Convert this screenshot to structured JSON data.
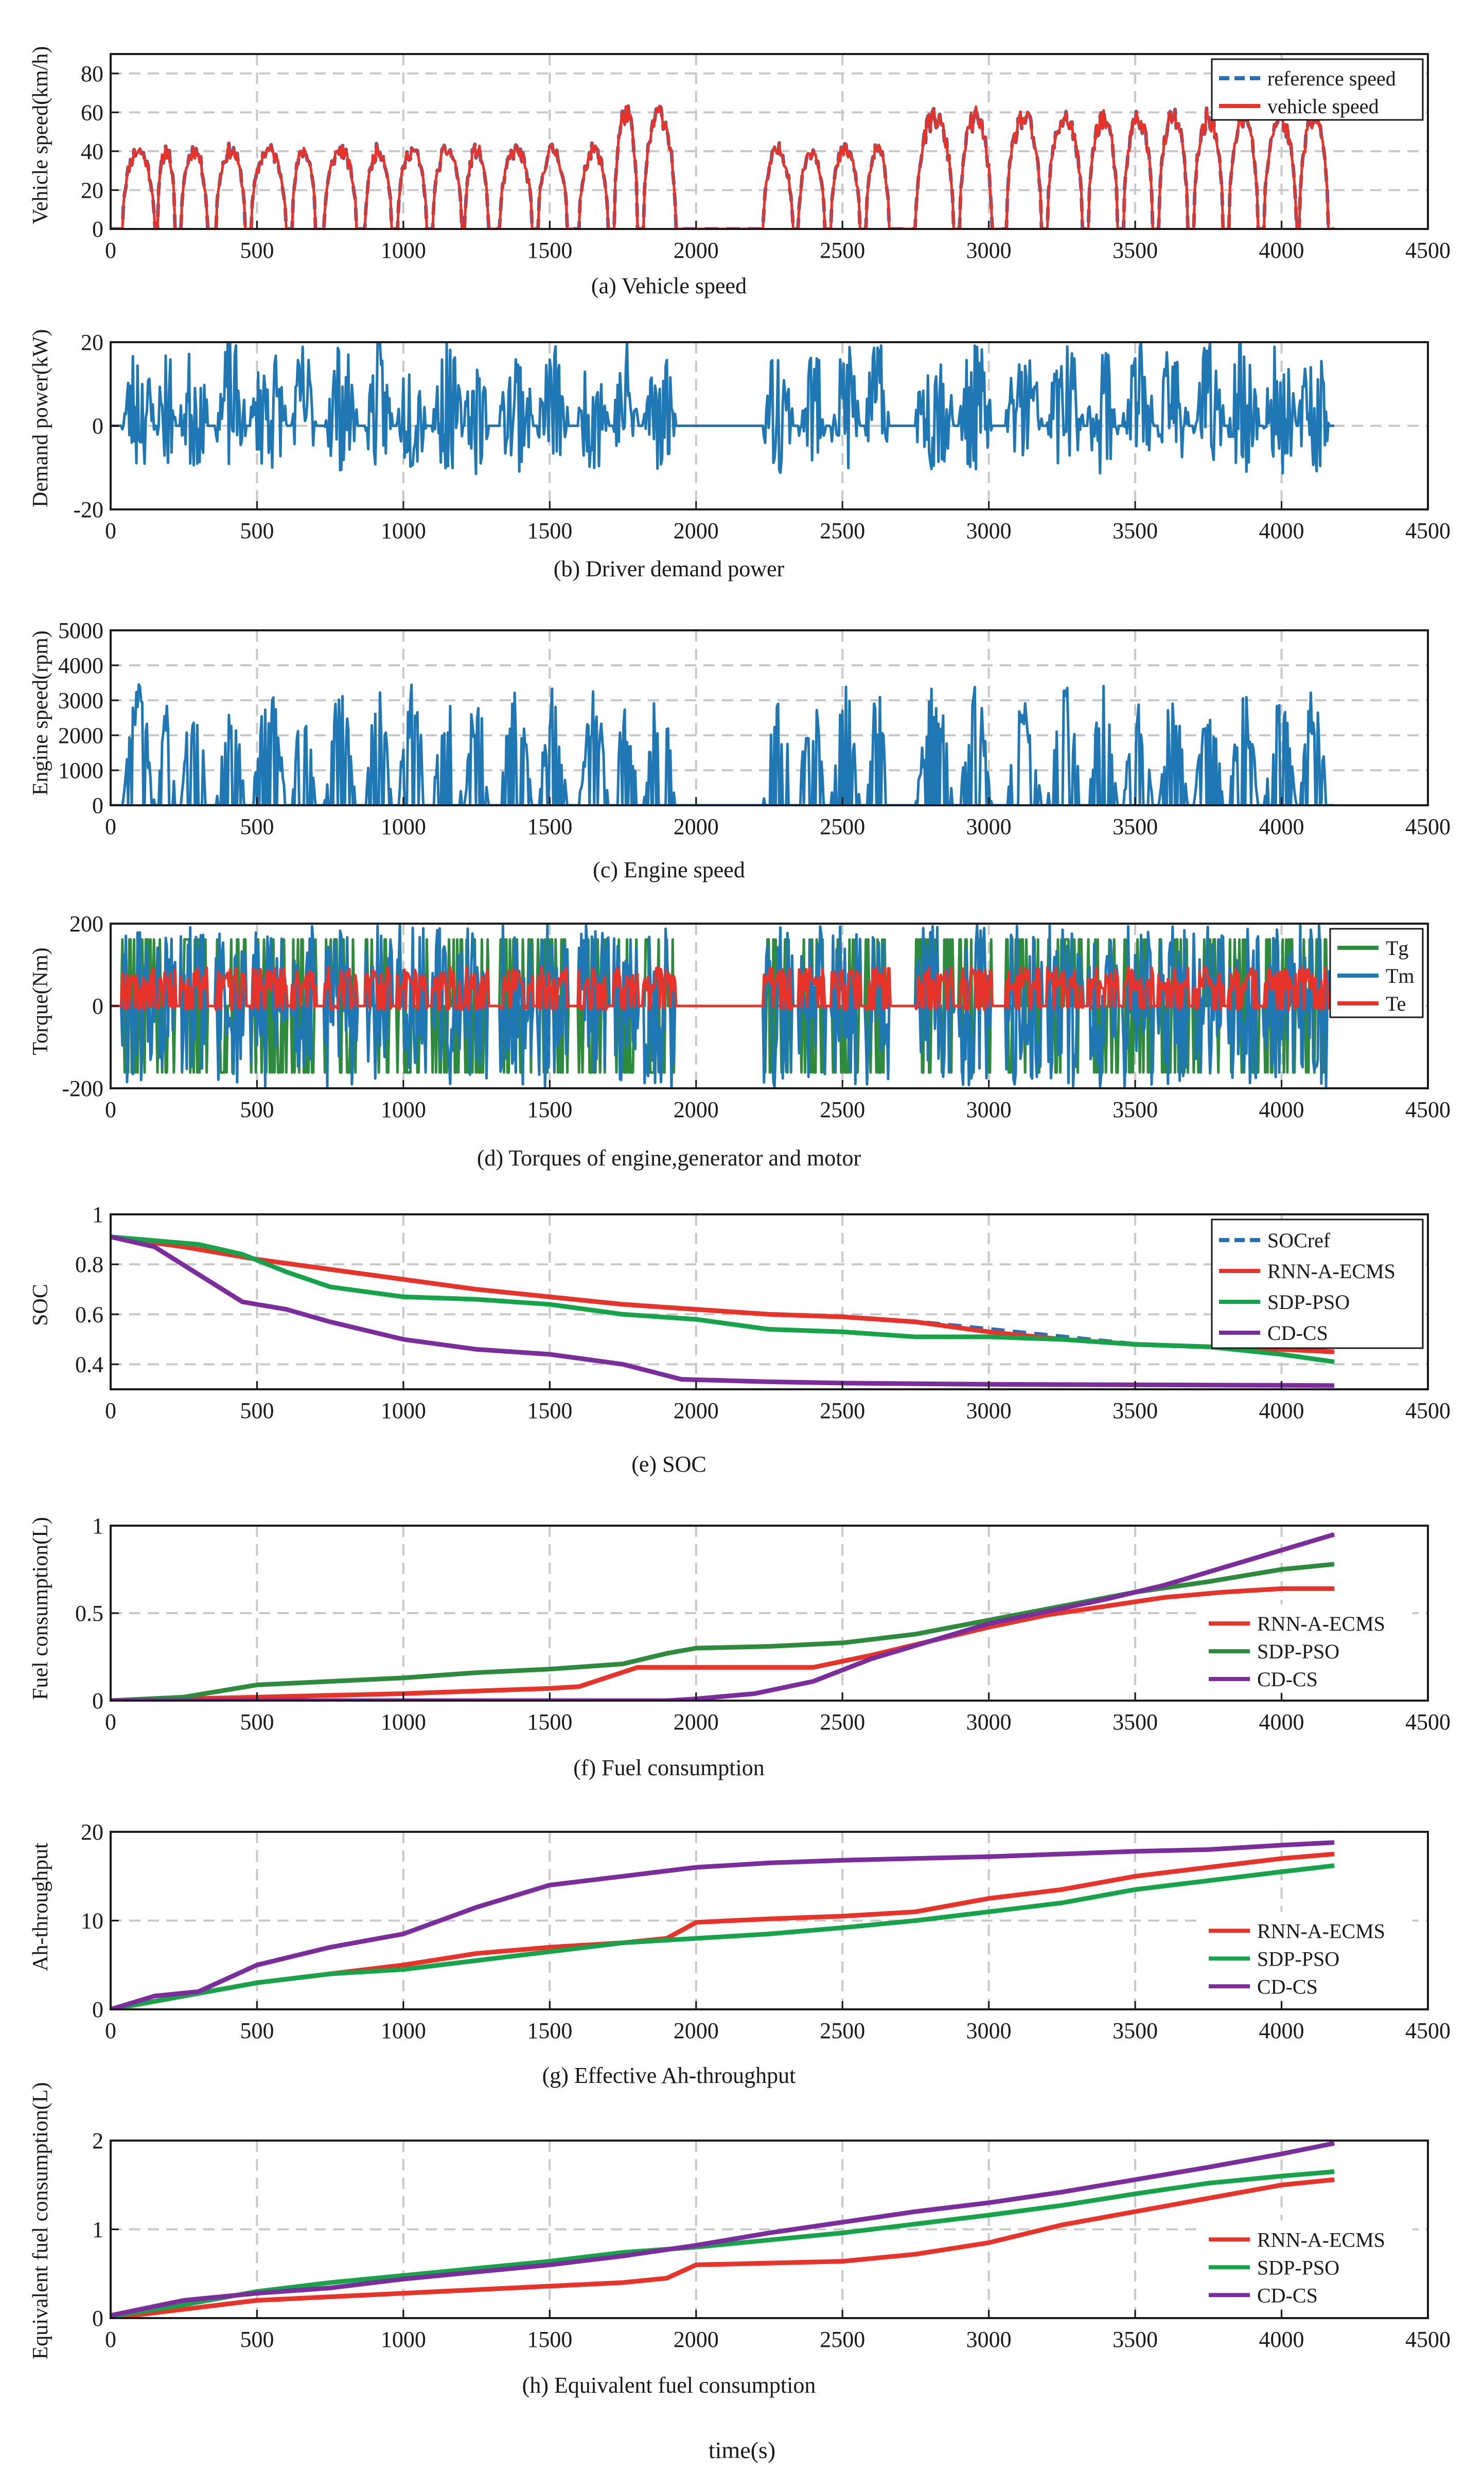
{
  "figure": {
    "xlabel": "time(s)"
  },
  "colors": {
    "red": "#e8332a",
    "blue": "#1f77b4",
    "green": "#16a34a",
    "darkgreen": "#2e8b3d",
    "purple": "#7b2d9b",
    "refblue": "#2a6fb5",
    "grid": "#c8c8c8"
  },
  "chart_data": [
    {
      "id": "a",
      "type": "line",
      "caption": "(a)  Vehicle speed",
      "ylabel": "Vehicle  speed(km/h)",
      "xlim": [
        0,
        4500
      ],
      "ylim": [
        0,
        90
      ],
      "xticks": [
        "0",
        "500",
        "1000",
        "1500",
        "2000",
        "2500",
        "3000",
        "3500",
        "4000",
        "4500"
      ],
      "yticks": [
        "0",
        "20",
        "40",
        "60",
        "80"
      ],
      "legend": {
        "position": "top-right",
        "entries": [
          "reference speed",
          "vehicle speed"
        ]
      },
      "series": [
        {
          "name": "reference speed",
          "color": "#2a6fb5",
          "style": "dashed",
          "signal": "speed",
          "seed": 11,
          "peak": 50,
          "cap": 64
        },
        {
          "name": "vehicle speed",
          "color": "#e8332a",
          "style": "solid",
          "signal": "speed",
          "seed": 11,
          "peak": 50,
          "cap": 64
        }
      ]
    },
    {
      "id": "b",
      "type": "line",
      "caption": "(b)  Driver demand power",
      "ylabel": "Demand power(kW)",
      "xlim": [
        0,
        4500
      ],
      "ylim": [
        -20,
        20
      ],
      "xticks": [
        "0",
        "500",
        "1000",
        "1500",
        "2000",
        "2500",
        "3000",
        "3500",
        "4000",
        "4500"
      ],
      "yticks": [
        "-20",
        "0",
        "20"
      ],
      "legend": null,
      "series": [
        {
          "name": "demand power",
          "color": "#1f77b4",
          "style": "solid",
          "signal": "power",
          "seed": 23,
          "peak": 20,
          "cap": 20
        }
      ]
    },
    {
      "id": "c",
      "type": "line",
      "caption": "(c)  Engine speed",
      "ylabel": "Engine speed(rpm)",
      "xlim": [
        0,
        4500
      ],
      "ylim": [
        0,
        5000
      ],
      "xticks": [
        "0",
        "500",
        "1000",
        "1500",
        "2000",
        "2500",
        "3000",
        "3500",
        "4000",
        "4500"
      ],
      "yticks": [
        "0",
        "1000",
        "2000",
        "3000",
        "4000",
        "5000"
      ],
      "legend": null,
      "series": [
        {
          "name": "engine speed",
          "color": "#1f77b4",
          "style": "solid",
          "signal": "engine",
          "seed": 37,
          "peak": 3000,
          "cap": 4300
        }
      ]
    },
    {
      "id": "d",
      "type": "line",
      "caption": "(d)  Torques of engine,generator and  motor",
      "ylabel": "Torque(Nm)",
      "xlim": [
        0,
        4500
      ],
      "ylim": [
        -200,
        200
      ],
      "xticks": [
        "0",
        "500",
        "1000",
        "1500",
        "2000",
        "2500",
        "3000",
        "3500",
        "4000",
        "4500"
      ],
      "yticks": [
        "-200",
        "0",
        "200"
      ],
      "legend": {
        "position": "top-right",
        "entries": [
          "Tg",
          "Tm",
          "Te"
        ]
      },
      "series": [
        {
          "name": "Tg",
          "color": "#2e8b3d",
          "style": "solid",
          "signal": "tg",
          "seed": 53,
          "peak": 160,
          "cap": 170
        },
        {
          "name": "Tm",
          "color": "#1f77b4",
          "style": "solid",
          "signal": "tm",
          "seed": 61,
          "peak": 200,
          "cap": 200
        },
        {
          "name": "Te",
          "color": "#e8332a",
          "style": "solid",
          "signal": "te",
          "seed": 71,
          "peak": 85,
          "cap": 95
        }
      ]
    },
    {
      "id": "e",
      "type": "line",
      "caption": "(e)  SOC",
      "ylabel": "SOC",
      "xlim": [
        0,
        4500
      ],
      "ylim": [
        0.3,
        1.0
      ],
      "xticks": [
        "0",
        "500",
        "1000",
        "1500",
        "2000",
        "2500",
        "3000",
        "3500",
        "4000",
        "4500"
      ],
      "yticks": [
        "0.4",
        "0.6",
        "0.8",
        "1"
      ],
      "legend": {
        "position": "top-right",
        "entries": [
          "SOCref",
          "RNN-A-ECMS",
          "SDP-PSO",
          "CD-CS"
        ]
      },
      "series": [
        {
          "name": "SOCref",
          "color": "#2a6fb5",
          "style": "dashed",
          "x": [
            0,
            250,
            500,
            750,
            1000,
            1250,
            1500,
            1750,
            2000,
            2250,
            2500,
            2750,
            3000,
            3250,
            3500,
            3750,
            4000,
            4180
          ],
          "y": [
            0.91,
            0.87,
            0.82,
            0.78,
            0.74,
            0.7,
            0.67,
            0.64,
            0.62,
            0.6,
            0.59,
            0.57,
            0.54,
            0.51,
            0.48,
            0.47,
            0.46,
            0.45
          ]
        },
        {
          "name": "RNN-A-ECMS",
          "color": "#e8332a",
          "style": "solid",
          "x": [
            0,
            250,
            500,
            750,
            1000,
            1250,
            1500,
            1750,
            2000,
            2250,
            2500,
            2750,
            3000,
            3250,
            3500,
            3750,
            4000,
            4180
          ],
          "y": [
            0.91,
            0.87,
            0.82,
            0.78,
            0.74,
            0.7,
            0.67,
            0.64,
            0.62,
            0.6,
            0.59,
            0.57,
            0.53,
            0.5,
            0.48,
            0.47,
            0.46,
            0.45
          ]
        },
        {
          "name": "SDP-PSO",
          "color": "#16a34a",
          "style": "solid",
          "x": [
            0,
            300,
            450,
            600,
            750,
            1000,
            1250,
            1500,
            1750,
            2000,
            2250,
            2500,
            2750,
            3000,
            3250,
            3500,
            3750,
            4000,
            4180
          ],
          "y": [
            0.91,
            0.88,
            0.84,
            0.77,
            0.71,
            0.67,
            0.66,
            0.64,
            0.6,
            0.58,
            0.54,
            0.53,
            0.51,
            0.51,
            0.5,
            0.48,
            0.47,
            0.44,
            0.41
          ]
        },
        {
          "name": "CD-CS",
          "color": "#7b2d9b",
          "style": "solid",
          "x": [
            0,
            150,
            300,
            450,
            600,
            750,
            1000,
            1250,
            1500,
            1750,
            1950,
            2250,
            2500,
            3000,
            3500,
            4000,
            4180
          ],
          "y": [
            0.91,
            0.87,
            0.76,
            0.65,
            0.62,
            0.57,
            0.5,
            0.46,
            0.44,
            0.4,
            0.34,
            0.33,
            0.325,
            0.32,
            0.318,
            0.316,
            0.315
          ]
        }
      ]
    },
    {
      "id": "f",
      "type": "line",
      "caption": "(f)  Fuel consumption",
      "ylabel": "Fuel consumption(L)",
      "xlim": [
        0,
        4500
      ],
      "ylim": [
        0,
        1
      ],
      "xticks": [
        "0",
        "500",
        "1000",
        "1500",
        "2000",
        "2500",
        "3000",
        "3500",
        "4000",
        "4500"
      ],
      "yticks": [
        "0",
        "0.5",
        "1"
      ],
      "legend": {
        "position": "right",
        "entries": [
          "RNN-A-ECMS",
          "SDP-PSO",
          "CD-CS"
        ]
      },
      "series": [
        {
          "name": "RNN-A-ECMS",
          "color": "#e8332a",
          "style": "solid",
          "x": [
            0,
            500,
            1000,
            1500,
            1600,
            1800,
            2000,
            2400,
            2600,
            2800,
            3000,
            3200,
            3400,
            3600,
            3800,
            4000,
            4180
          ],
          "y": [
            0,
            0.02,
            0.04,
            0.07,
            0.08,
            0.19,
            0.19,
            0.19,
            0.26,
            0.34,
            0.42,
            0.49,
            0.54,
            0.59,
            0.62,
            0.64,
            0.64
          ]
        },
        {
          "name": "SDP-PSO",
          "color": "#2e8b3d",
          "style": "solid",
          "x": [
            0,
            250,
            500,
            750,
            1000,
            1250,
            1500,
            1750,
            1900,
            2000,
            2250,
            2500,
            2750,
            3000,
            3250,
            3500,
            3750,
            4000,
            4180
          ],
          "y": [
            0,
            0.02,
            0.09,
            0.11,
            0.13,
            0.16,
            0.18,
            0.21,
            0.27,
            0.3,
            0.31,
            0.33,
            0.38,
            0.46,
            0.54,
            0.62,
            0.68,
            0.75,
            0.78
          ]
        },
        {
          "name": "CD-CS",
          "color": "#7b2d9b",
          "style": "solid",
          "x": [
            0,
            1000,
            1900,
            2000,
            2200,
            2400,
            2600,
            2800,
            3000,
            3200,
            3400,
            3600,
            3800,
            4000,
            4180
          ],
          "y": [
            0,
            0,
            0,
            0.01,
            0.04,
            0.11,
            0.24,
            0.34,
            0.44,
            0.51,
            0.58,
            0.66,
            0.76,
            0.86,
            0.95
          ]
        }
      ]
    },
    {
      "id": "g",
      "type": "line",
      "caption": "(g)  Effective Ah-throughput",
      "ylabel": "Ah-throughput",
      "xlim": [
        0,
        4500
      ],
      "ylim": [
        0,
        20
      ],
      "xticks": [
        "0",
        "500",
        "1000",
        "1500",
        "2000",
        "2500",
        "3000",
        "3500",
        "4000",
        "4500"
      ],
      "yticks": [
        "0",
        "10",
        "20"
      ],
      "legend": {
        "position": "right",
        "entries": [
          "RNN-A-ECMS",
          "SDP-PSO",
          "CD-CS"
        ]
      },
      "series": [
        {
          "name": "RNN-A-ECMS",
          "color": "#e8332a",
          "style": "solid",
          "x": [
            0,
            250,
            500,
            750,
            1000,
            1250,
            1500,
            1750,
            1900,
            2000,
            2250,
            2500,
            2750,
            3000,
            3250,
            3500,
            3750,
            4000,
            4180
          ],
          "y": [
            0,
            1.5,
            3,
            4,
            5,
            6.3,
            7,
            7.5,
            8,
            9.8,
            10.2,
            10.5,
            11,
            12.5,
            13.5,
            15,
            16,
            17,
            17.5
          ]
        },
        {
          "name": "SDP-PSO",
          "color": "#16a34a",
          "style": "solid",
          "x": [
            0,
            250,
            500,
            750,
            1000,
            1250,
            1500,
            1750,
            2000,
            2250,
            2500,
            2750,
            3000,
            3250,
            3500,
            3750,
            4000,
            4180
          ],
          "y": [
            0,
            1.5,
            3,
            4,
            4.5,
            5.5,
            6.5,
            7.5,
            8,
            8.5,
            9.2,
            10,
            11,
            12,
            13.5,
            14.5,
            15.5,
            16.2
          ]
        },
        {
          "name": "CD-CS",
          "color": "#7b2d9b",
          "style": "solid",
          "x": [
            0,
            150,
            300,
            500,
            750,
            1000,
            1250,
            1500,
            1750,
            2000,
            2250,
            2500,
            2750,
            3000,
            3250,
            3500,
            3750,
            4000,
            4180
          ],
          "y": [
            0,
            1.5,
            2,
            5,
            7,
            8.5,
            11.5,
            14,
            15,
            16,
            16.5,
            16.8,
            17,
            17.2,
            17.5,
            17.8,
            18,
            18.5,
            18.8
          ]
        }
      ]
    },
    {
      "id": "h",
      "type": "line",
      "caption": "(h)  Equivalent fuel consumption",
      "ylabel": "Equivalent fuel consumption(L)",
      "xlim": [
        0,
        4500
      ],
      "ylim": [
        0,
        2
      ],
      "xticks": [
        "0",
        "500",
        "1000",
        "1500",
        "2000",
        "2500",
        "3000",
        "3500",
        "4000",
        "4500"
      ],
      "yticks": [
        "0",
        "1",
        "2"
      ],
      "legend": {
        "position": "right",
        "entries": [
          "RNN-A-ECMS",
          "SDP-PSO",
          "CD-CS"
        ]
      },
      "series": [
        {
          "name": "RNN-A-ECMS",
          "color": "#e8332a",
          "style": "solid",
          "x": [
            0,
            250,
            500,
            750,
            1000,
            1250,
            1500,
            1750,
            1900,
            2000,
            2250,
            2500,
            2750,
            3000,
            3250,
            3500,
            3750,
            4000,
            4180
          ],
          "y": [
            0,
            0.1,
            0.2,
            0.24,
            0.28,
            0.32,
            0.36,
            0.4,
            0.45,
            0.6,
            0.62,
            0.64,
            0.72,
            0.85,
            1.05,
            1.2,
            1.35,
            1.5,
            1.56
          ]
        },
        {
          "name": "SDP-PSO",
          "color": "#16a34a",
          "style": "solid",
          "x": [
            0,
            250,
            500,
            750,
            1000,
            1250,
            1500,
            1750,
            2000,
            2250,
            2500,
            2750,
            3000,
            3250,
            3500,
            3750,
            4000,
            4180
          ],
          "y": [
            0.02,
            0.15,
            0.3,
            0.4,
            0.48,
            0.56,
            0.64,
            0.74,
            0.8,
            0.88,
            0.96,
            1.06,
            1.16,
            1.27,
            1.4,
            1.52,
            1.6,
            1.65
          ]
        },
        {
          "name": "CD-CS",
          "color": "#7b2d9b",
          "style": "solid",
          "x": [
            0,
            250,
            500,
            750,
            1000,
            1250,
            1500,
            1750,
            2000,
            2250,
            2500,
            2750,
            3000,
            3250,
            3500,
            3750,
            4000,
            4180
          ],
          "y": [
            0.03,
            0.2,
            0.28,
            0.34,
            0.44,
            0.52,
            0.6,
            0.7,
            0.82,
            0.96,
            1.08,
            1.2,
            1.3,
            1.42,
            1.56,
            1.7,
            1.85,
            1.97
          ]
        }
      ]
    }
  ]
}
